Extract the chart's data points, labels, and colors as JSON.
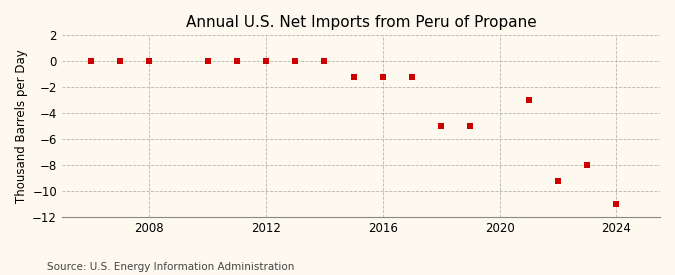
{
  "title": "Annual U.S. Net Imports from Peru of Propane",
  "ylabel": "Thousand Barrels per Day",
  "source": "Source: U.S. Energy Information Administration",
  "background_color": "#fef9ee",
  "years": [
    2006,
    2007,
    2008,
    2010,
    2011,
    2012,
    2013,
    2014,
    2015,
    2016,
    2017,
    2018,
    2019,
    2021,
    2022,
    2023,
    2024
  ],
  "values": [
    0,
    0,
    0,
    0,
    0,
    0,
    0,
    0,
    -1.2,
    -1.2,
    -1.2,
    -5.0,
    -5.0,
    -3.0,
    -9.2,
    -8.0,
    -11.0
  ],
  "marker_color": "#cc0000",
  "marker_size": 18,
  "ylim": [
    -12,
    2
  ],
  "yticks": [
    2,
    0,
    -2,
    -4,
    -6,
    -8,
    -10,
    -12
  ],
  "xticks": [
    2008,
    2012,
    2016,
    2020,
    2024
  ],
  "xlim": [
    2005.0,
    2025.5
  ],
  "grid_color": "#aaaaaa",
  "title_fontsize": 11,
  "axis_fontsize": 8.5,
  "source_fontsize": 7.5
}
